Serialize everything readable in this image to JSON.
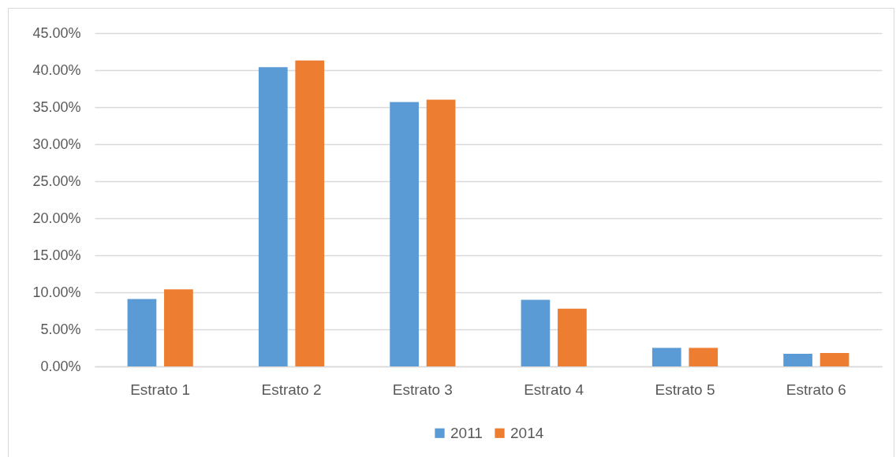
{
  "chart_data": {
    "type": "bar",
    "categories": [
      "Estrato 1",
      "Estrato 2",
      "Estrato 3",
      "Estrato 4",
      "Estrato 5",
      "Estrato 6"
    ],
    "series": [
      {
        "name": "2011",
        "color": "#5b9bd5",
        "values": [
          9.1,
          40.4,
          35.7,
          9.0,
          2.5,
          1.7
        ]
      },
      {
        "name": "2014",
        "color": "#ed7d31",
        "values": [
          10.4,
          41.3,
          36.0,
          7.8,
          2.5,
          1.8
        ]
      }
    ],
    "ylim": [
      0,
      45
    ],
    "yticks": [
      {
        "value": 0,
        "label": "0.00%"
      },
      {
        "value": 5,
        "label": "5.00%"
      },
      {
        "value": 10,
        "label": "10.00%"
      },
      {
        "value": 15,
        "label": "15.00%"
      },
      {
        "value": 20,
        "label": "20.00%"
      },
      {
        "value": 25,
        "label": "25.00%"
      },
      {
        "value": 30,
        "label": "30.00%"
      },
      {
        "value": 35,
        "label": "35.00%"
      },
      {
        "value": 40,
        "label": "40.00%"
      },
      {
        "value": 45,
        "label": "45.00%"
      }
    ],
    "grid": true,
    "legend": "bottom"
  }
}
